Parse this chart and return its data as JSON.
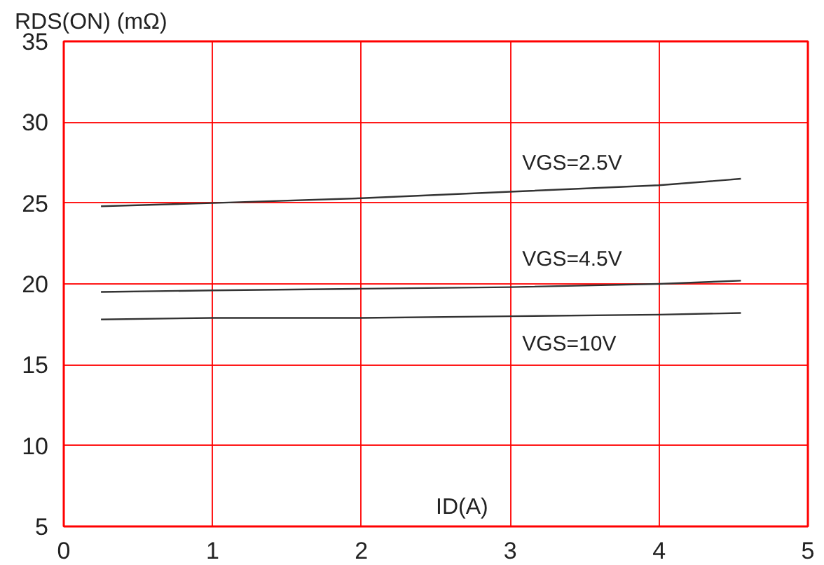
{
  "chart_data": {
    "type": "line",
    "xlabel": "ID(A)",
    "ylabel": "RDS(ON) (mΩ)",
    "x": [
      0.25,
      1,
      2,
      3,
      4,
      4.55
    ],
    "series": [
      {
        "name": "VGS=2.5V",
        "color": "#333333",
        "values": [
          24.8,
          25.0,
          25.3,
          25.7,
          26.1,
          26.5
        ]
      },
      {
        "name": "VGS=4.5V",
        "color": "#333333",
        "values": [
          19.5,
          19.6,
          19.7,
          19.8,
          20.0,
          20.2
        ]
      },
      {
        "name": "VGS=10V",
        "color": "#333333",
        "values": [
          17.8,
          17.9,
          17.9,
          18.0,
          18.1,
          18.2
        ]
      }
    ],
    "xlim": [
      0,
      5
    ],
    "ylim": [
      5,
      35
    ],
    "xticks": [
      0,
      1,
      2,
      3,
      4,
      5
    ],
    "yticks": [
      5,
      10,
      15,
      20,
      25,
      30,
      35
    ],
    "grid": true,
    "line_style": "solid",
    "marker": "none"
  }
}
